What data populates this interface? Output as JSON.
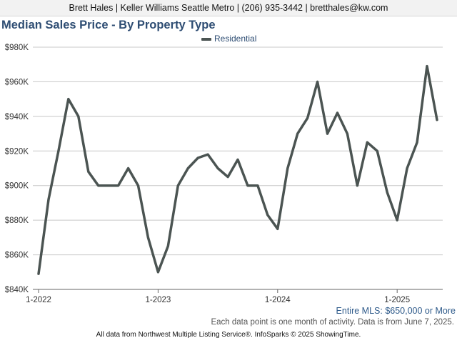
{
  "header": {
    "agent_line": "Brett Hales | Keller Williams Seattle Metro | (206) 935-3442 | bretthales@kw.com"
  },
  "footer": {
    "mls_label": "Entire MLS: $650,000 or More",
    "note": "Each data point is one month of activity. Data is from June 7, 2025.",
    "source": "All data from Northwest Multiple Listing Service®. InfoSparks © 2025 ShowingTime."
  },
  "colors": {
    "series_line": "#4b5452",
    "title": "#2e4d73",
    "grid": "#c8c8c8"
  },
  "chart_data": {
    "type": "line",
    "title": "Median Sales Price - By Property Type",
    "xlabel": "",
    "ylabel": "",
    "grid": true,
    "legend": "top-center",
    "ylim": [
      840000,
      980000
    ],
    "yticks": [
      840000,
      860000,
      880000,
      900000,
      920000,
      940000,
      960000,
      980000
    ],
    "ytick_labels": [
      "$840K",
      "$860K",
      "$880K",
      "$900K",
      "$920K",
      "$940K",
      "$960K",
      "$980K"
    ],
    "xticks": [
      "2022-01",
      "2023-01",
      "2024-01",
      "2025-01"
    ],
    "xtick_labels": [
      "1-2022",
      "1-2023",
      "1-2024",
      "1-2025"
    ],
    "x": [
      "2022-01",
      "2022-02",
      "2022-03",
      "2022-04",
      "2022-05",
      "2022-06",
      "2022-07",
      "2022-08",
      "2022-09",
      "2022-10",
      "2022-11",
      "2022-12",
      "2023-01",
      "2023-02",
      "2023-03",
      "2023-04",
      "2023-05",
      "2023-06",
      "2023-07",
      "2023-08",
      "2023-09",
      "2023-10",
      "2023-11",
      "2023-12",
      "2024-01",
      "2024-02",
      "2024-03",
      "2024-04",
      "2024-05",
      "2024-06",
      "2024-07",
      "2024-08",
      "2024-09",
      "2024-10",
      "2024-11",
      "2024-12",
      "2025-01",
      "2025-02",
      "2025-03",
      "2025-04",
      "2025-05"
    ],
    "series": [
      {
        "name": "Residential",
        "values": [
          849000,
          892000,
          920000,
          950000,
          940000,
          908000,
          900000,
          900000,
          900000,
          910000,
          900000,
          870000,
          850000,
          865000,
          900000,
          910000,
          916000,
          918000,
          910000,
          905000,
          915000,
          900000,
          900000,
          883000,
          875000,
          910000,
          930000,
          939000,
          960000,
          930000,
          942000,
          930000,
          900000,
          925000,
          920000,
          896000,
          880000,
          910000,
          925000,
          969000,
          938000
        ]
      }
    ]
  }
}
